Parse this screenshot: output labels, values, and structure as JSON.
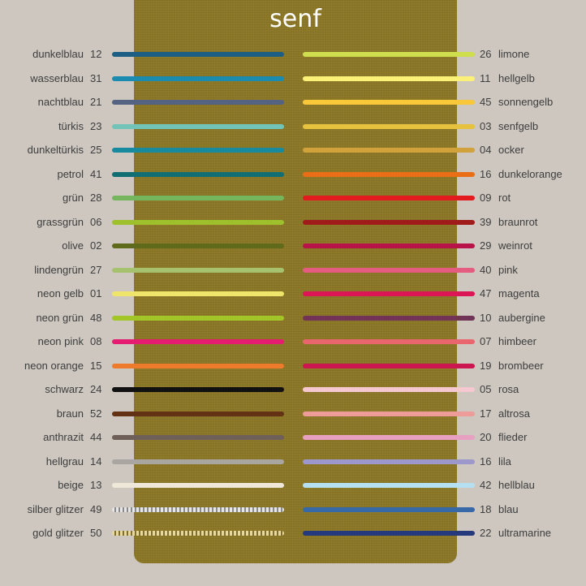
{
  "title": "senf",
  "left": [
    {
      "name": "dunkelblau",
      "num": "12",
      "color": "#1d5f84"
    },
    {
      "name": "wasserblau",
      "num": "31",
      "color": "#1c8bb0"
    },
    {
      "name": "nachtblau",
      "num": "21",
      "color": "#556383"
    },
    {
      "name": "türkis",
      "num": "23",
      "color": "#72c4b8"
    },
    {
      "name": "dunkeltürkis",
      "num": "25",
      "color": "#178a9e"
    },
    {
      "name": "petrol",
      "num": "41",
      "color": "#116f73"
    },
    {
      "name": "grün",
      "num": "28",
      "color": "#74b55d"
    },
    {
      "name": "grassgrün",
      "num": "06",
      "color": "#9ec02c"
    },
    {
      "name": "olive",
      "num": "02",
      "color": "#5f6a1a"
    },
    {
      "name": "lindengrün",
      "num": "27",
      "color": "#a6c26e"
    },
    {
      "name": "neon gelb",
      "num": "01",
      "color": "#efe56a"
    },
    {
      "name": "neon grün",
      "num": "48",
      "color": "#a2c527"
    },
    {
      "name": "neon pink",
      "num": "08",
      "color": "#e51c6f"
    },
    {
      "name": "neon orange",
      "num": "15",
      "color": "#ee7a2c"
    },
    {
      "name": "schwarz",
      "num": "24",
      "color": "#111111"
    },
    {
      "name": "braun",
      "num": "52",
      "color": "#633114"
    },
    {
      "name": "anthrazit",
      "num": "44",
      "color": "#6e6058"
    },
    {
      "name": "hellgrau",
      "num": "14",
      "color": "#a9a6a1"
    },
    {
      "name": "beige",
      "num": "13",
      "color": "#efe8d8"
    },
    {
      "name": "silber glitzer",
      "num": "49",
      "color": "#c8c8c8",
      "glitter": "silver"
    },
    {
      "name": "gold glitzer",
      "num": "50",
      "color": "#c7b36a",
      "glitter": "gold"
    }
  ],
  "right": [
    {
      "name": "limone",
      "num": "26",
      "color": "#cfde4d"
    },
    {
      "name": "hellgelb",
      "num": "11",
      "color": "#fbf178"
    },
    {
      "name": "sonnengelb",
      "num": "45",
      "color": "#f9c83a"
    },
    {
      "name": "senfgelb",
      "num": "03",
      "color": "#e6c23f"
    },
    {
      "name": "ocker",
      "num": "04",
      "color": "#d1a13c"
    },
    {
      "name": "dunkelorange",
      "num": "16",
      "color": "#e96e15"
    },
    {
      "name": "rot",
      "num": "09",
      "color": "#e31b1f"
    },
    {
      "name": "braunrot",
      "num": "39",
      "color": "#a01c1b"
    },
    {
      "name": "weinrot",
      "num": "29",
      "color": "#b81449"
    },
    {
      "name": "pink",
      "num": "40",
      "color": "#e45c7f"
    },
    {
      "name": "magenta",
      "num": "47",
      "color": "#dc1556"
    },
    {
      "name": "aubergine",
      "num": "10",
      "color": "#713356"
    },
    {
      "name": "himbeer",
      "num": "07",
      "color": "#e9666e"
    },
    {
      "name": "brombeer",
      "num": "19",
      "color": "#cc1650"
    },
    {
      "name": "rosa",
      "num": "05",
      "color": "#f5c7d0"
    },
    {
      "name": "altrosa",
      "num": "17",
      "color": "#ee9c9a"
    },
    {
      "name": "flieder",
      "num": "20",
      "color": "#e79fc2"
    },
    {
      "name": "lila",
      "num": "16",
      "color": "#9d98cb"
    },
    {
      "name": "hellblau",
      "num": "42",
      "color": "#b5e0f2"
    },
    {
      "name": "blau",
      "num": "18",
      "color": "#3769a8"
    },
    {
      "name": "ultramarine",
      "num": "22",
      "color": "#253a7c"
    }
  ]
}
